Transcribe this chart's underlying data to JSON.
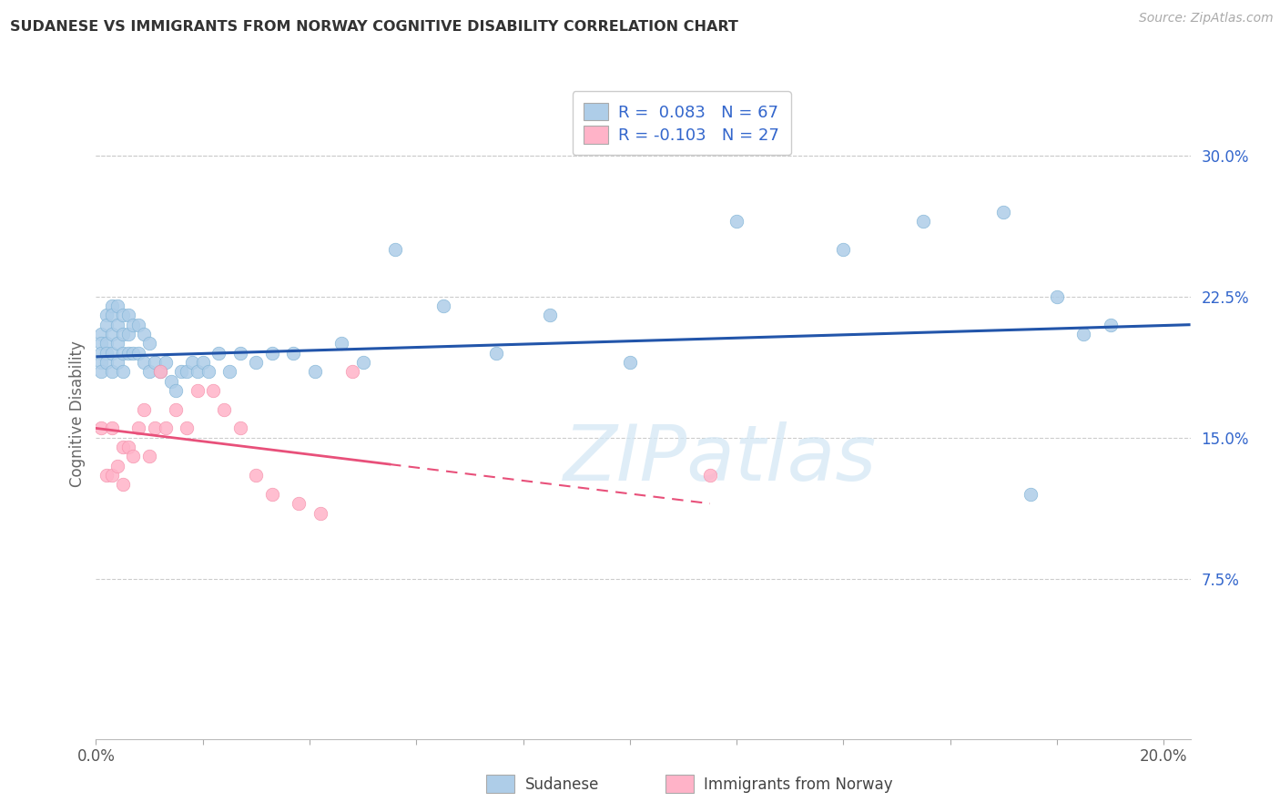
{
  "title": "SUDANESE VS IMMIGRANTS FROM NORWAY COGNITIVE DISABILITY CORRELATION CHART",
  "source": "Source: ZipAtlas.com",
  "ylabel": "Cognitive Disability",
  "xlim": [
    0.0,
    0.205
  ],
  "ylim": [
    -0.01,
    0.335
  ],
  "x_ticks": [
    0.0,
    0.02,
    0.04,
    0.06,
    0.08,
    0.1,
    0.12,
    0.14,
    0.16,
    0.18,
    0.2
  ],
  "x_tick_labels": [
    "0.0%",
    "",
    "",
    "",
    "",
    "",
    "",
    "",
    "",
    "",
    "20.0%"
  ],
  "y_ticks_right": [
    0.075,
    0.15,
    0.225,
    0.3
  ],
  "y_tick_labels_right": [
    "7.5%",
    "15.0%",
    "22.5%",
    "30.0%"
  ],
  "blue_scatter_color": "#aecde8",
  "blue_scatter_edge": "#7fb3d6",
  "pink_scatter_color": "#ffb3c8",
  "pink_scatter_edge": "#f490aa",
  "blue_line_color": "#2255aa",
  "pink_line_color": "#e8507a",
  "grid_color": "#cccccc",
  "background_color": "#ffffff",
  "legend_text_color": "#3366cc",
  "sudanese_x": [
    0.001,
    0.001,
    0.001,
    0.001,
    0.001,
    0.002,
    0.002,
    0.002,
    0.002,
    0.002,
    0.003,
    0.003,
    0.003,
    0.003,
    0.003,
    0.004,
    0.004,
    0.004,
    0.004,
    0.005,
    0.005,
    0.005,
    0.005,
    0.006,
    0.006,
    0.006,
    0.007,
    0.007,
    0.008,
    0.008,
    0.009,
    0.009,
    0.01,
    0.01,
    0.011,
    0.012,
    0.013,
    0.014,
    0.015,
    0.016,
    0.017,
    0.018,
    0.019,
    0.02,
    0.021,
    0.023,
    0.025,
    0.027,
    0.03,
    0.033,
    0.037,
    0.041,
    0.046,
    0.05,
    0.056,
    0.065,
    0.075,
    0.085,
    0.1,
    0.12,
    0.14,
    0.155,
    0.17,
    0.175,
    0.18,
    0.185,
    0.19
  ],
  "sudanese_y": [
    0.205,
    0.2,
    0.195,
    0.19,
    0.185,
    0.215,
    0.21,
    0.2,
    0.195,
    0.19,
    0.22,
    0.215,
    0.205,
    0.195,
    0.185,
    0.22,
    0.21,
    0.2,
    0.19,
    0.215,
    0.205,
    0.195,
    0.185,
    0.215,
    0.205,
    0.195,
    0.21,
    0.195,
    0.21,
    0.195,
    0.205,
    0.19,
    0.2,
    0.185,
    0.19,
    0.185,
    0.19,
    0.18,
    0.175,
    0.185,
    0.185,
    0.19,
    0.185,
    0.19,
    0.185,
    0.195,
    0.185,
    0.195,
    0.19,
    0.195,
    0.195,
    0.185,
    0.2,
    0.19,
    0.25,
    0.22,
    0.195,
    0.215,
    0.19,
    0.265,
    0.25,
    0.265,
    0.27,
    0.12,
    0.225,
    0.205,
    0.21
  ],
  "norway_x": [
    0.001,
    0.002,
    0.003,
    0.003,
    0.004,
    0.005,
    0.005,
    0.006,
    0.007,
    0.008,
    0.009,
    0.01,
    0.011,
    0.012,
    0.013,
    0.015,
    0.017,
    0.019,
    0.022,
    0.024,
    0.027,
    0.03,
    0.033,
    0.038,
    0.042,
    0.048,
    0.115
  ],
  "norway_y": [
    0.155,
    0.13,
    0.13,
    0.155,
    0.135,
    0.125,
    0.145,
    0.145,
    0.14,
    0.155,
    0.165,
    0.14,
    0.155,
    0.185,
    0.155,
    0.165,
    0.155,
    0.175,
    0.175,
    0.165,
    0.155,
    0.13,
    0.12,
    0.115,
    0.11,
    0.185,
    0.13
  ],
  "blue_line_x0": 0.0,
  "blue_line_x1": 0.205,
  "blue_line_y0": 0.193,
  "blue_line_y1": 0.21,
  "pink_line_x0": 0.0,
  "pink_line_x1": 0.115,
  "pink_line_solid_end": 0.055,
  "pink_line_y0": 0.155,
  "pink_line_y1": 0.115
}
